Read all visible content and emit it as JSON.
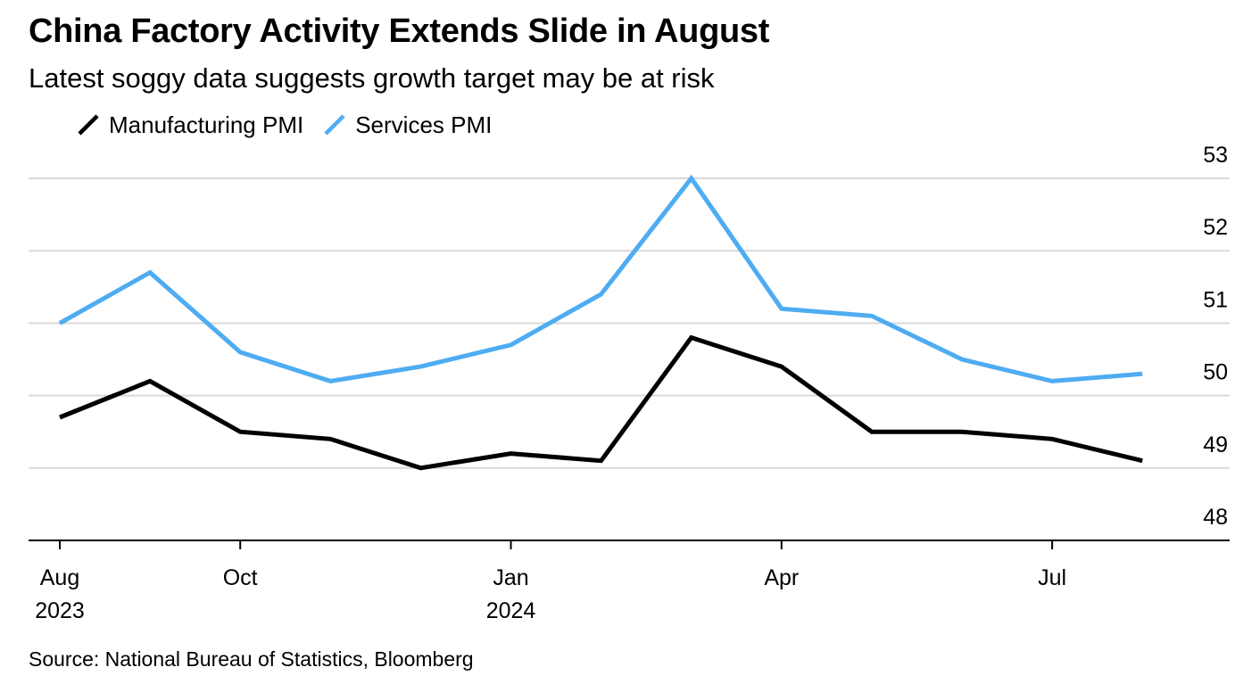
{
  "chart_data": {
    "type": "line",
    "title": "China Factory Activity Extends Slide in August",
    "subtitle": "Latest soggy data suggests growth target may be at risk",
    "source": "Source: National Bureau of Statistics, Bloomberg",
    "x": [
      "2023-08",
      "2023-09",
      "2023-10",
      "2023-11",
      "2023-12",
      "2024-01",
      "2024-02",
      "2024-03",
      "2024-04",
      "2024-05",
      "2024-06",
      "2024-07",
      "2024-08"
    ],
    "x_ticks": [
      {
        "month": "Aug",
        "year": "2023",
        "index": 0
      },
      {
        "month": "Oct",
        "year": "",
        "index": 2
      },
      {
        "month": "Jan",
        "year": "2024",
        "index": 5
      },
      {
        "month": "Apr",
        "year": "",
        "index": 8
      },
      {
        "month": "Jul",
        "year": "",
        "index": 11
      }
    ],
    "y_ticks": [
      53,
      52,
      51,
      50,
      49,
      48
    ],
    "ylim": [
      48,
      53
    ],
    "y_axis_side": "right",
    "grid": true,
    "legend_placement": "top-left",
    "series": [
      {
        "name": "Manufacturing PMI",
        "color": "#000000",
        "values": [
          49.7,
          50.2,
          49.5,
          49.4,
          49.0,
          49.2,
          49.1,
          50.8,
          50.4,
          49.5,
          49.5,
          49.4,
          49.1
        ]
      },
      {
        "name": "Services PMI",
        "color": "#4eacf2",
        "values": [
          51.0,
          51.7,
          50.6,
          50.2,
          50.4,
          50.7,
          51.4,
          53.0,
          51.2,
          51.1,
          50.5,
          50.2,
          50.3
        ]
      }
    ]
  }
}
